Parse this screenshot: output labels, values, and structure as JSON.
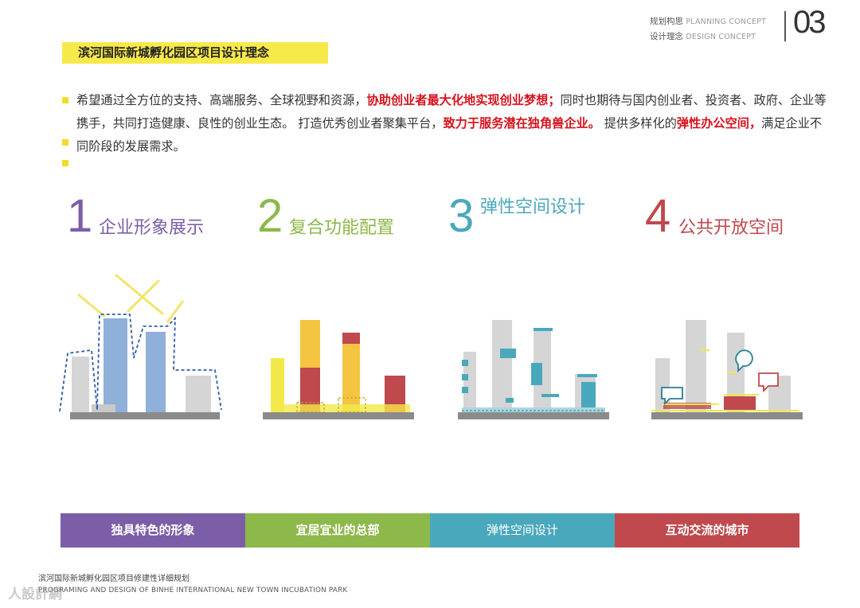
{
  "header": {
    "line1_cn": "规划构思",
    "line1_en": "PLANNING CONCEPT",
    "line2_cn": "设计理念",
    "line2_en": "DESIGN CONCEPT",
    "page_number": "03"
  },
  "title": "滨河国际新城孵化园区项目设计理念",
  "paragraph": {
    "p1": "希望通过全方位的支持、高端服务、全球视野和资源，",
    "h1": "协助创业者最大化地实现创业梦想；",
    "p2": "同时也期待与国内创业者、投资者、政府、企业等携手，共同打造健康、良性的创业生态。 打造优秀创业者聚集平台，",
    "h2": "致力于服务潜在独角兽企业。",
    "p3": " 提供多样化的",
    "h3": "弹性办公空间，",
    "p4": "满足企业不同阶段的发展需求。"
  },
  "concepts": [
    {
      "number": "1",
      "label": "企业形象展示",
      "color": "#7b5ea7"
    },
    {
      "number": "2",
      "label": "复合功能配置",
      "color": "#8db84a"
    },
    {
      "number": "3",
      "label": "弹性空间设计",
      "color": "#4aa8bc"
    },
    {
      "number": "4",
      "label": "公共开放空间",
      "color": "#c0494d"
    }
  ],
  "bottom_bars": [
    {
      "label": "独具特色的形象",
      "color": "#7b5ea7"
    },
    {
      "label": "宜居宜业的总部",
      "color": "#8db84a"
    },
    {
      "label": "弹性空间设计",
      "color": "#4aa8bc"
    },
    {
      "label": "互动交流的城市",
      "color": "#c0494d"
    }
  ],
  "footer": {
    "cn": "滨河国际新城孵化园区项目修建性详细规划",
    "en": "PROGRAMING AND DESIGN OF BINHE INTERNATIONAL NEW TOWN INCUBATION PARK"
  },
  "watermark": "人設計網"
}
